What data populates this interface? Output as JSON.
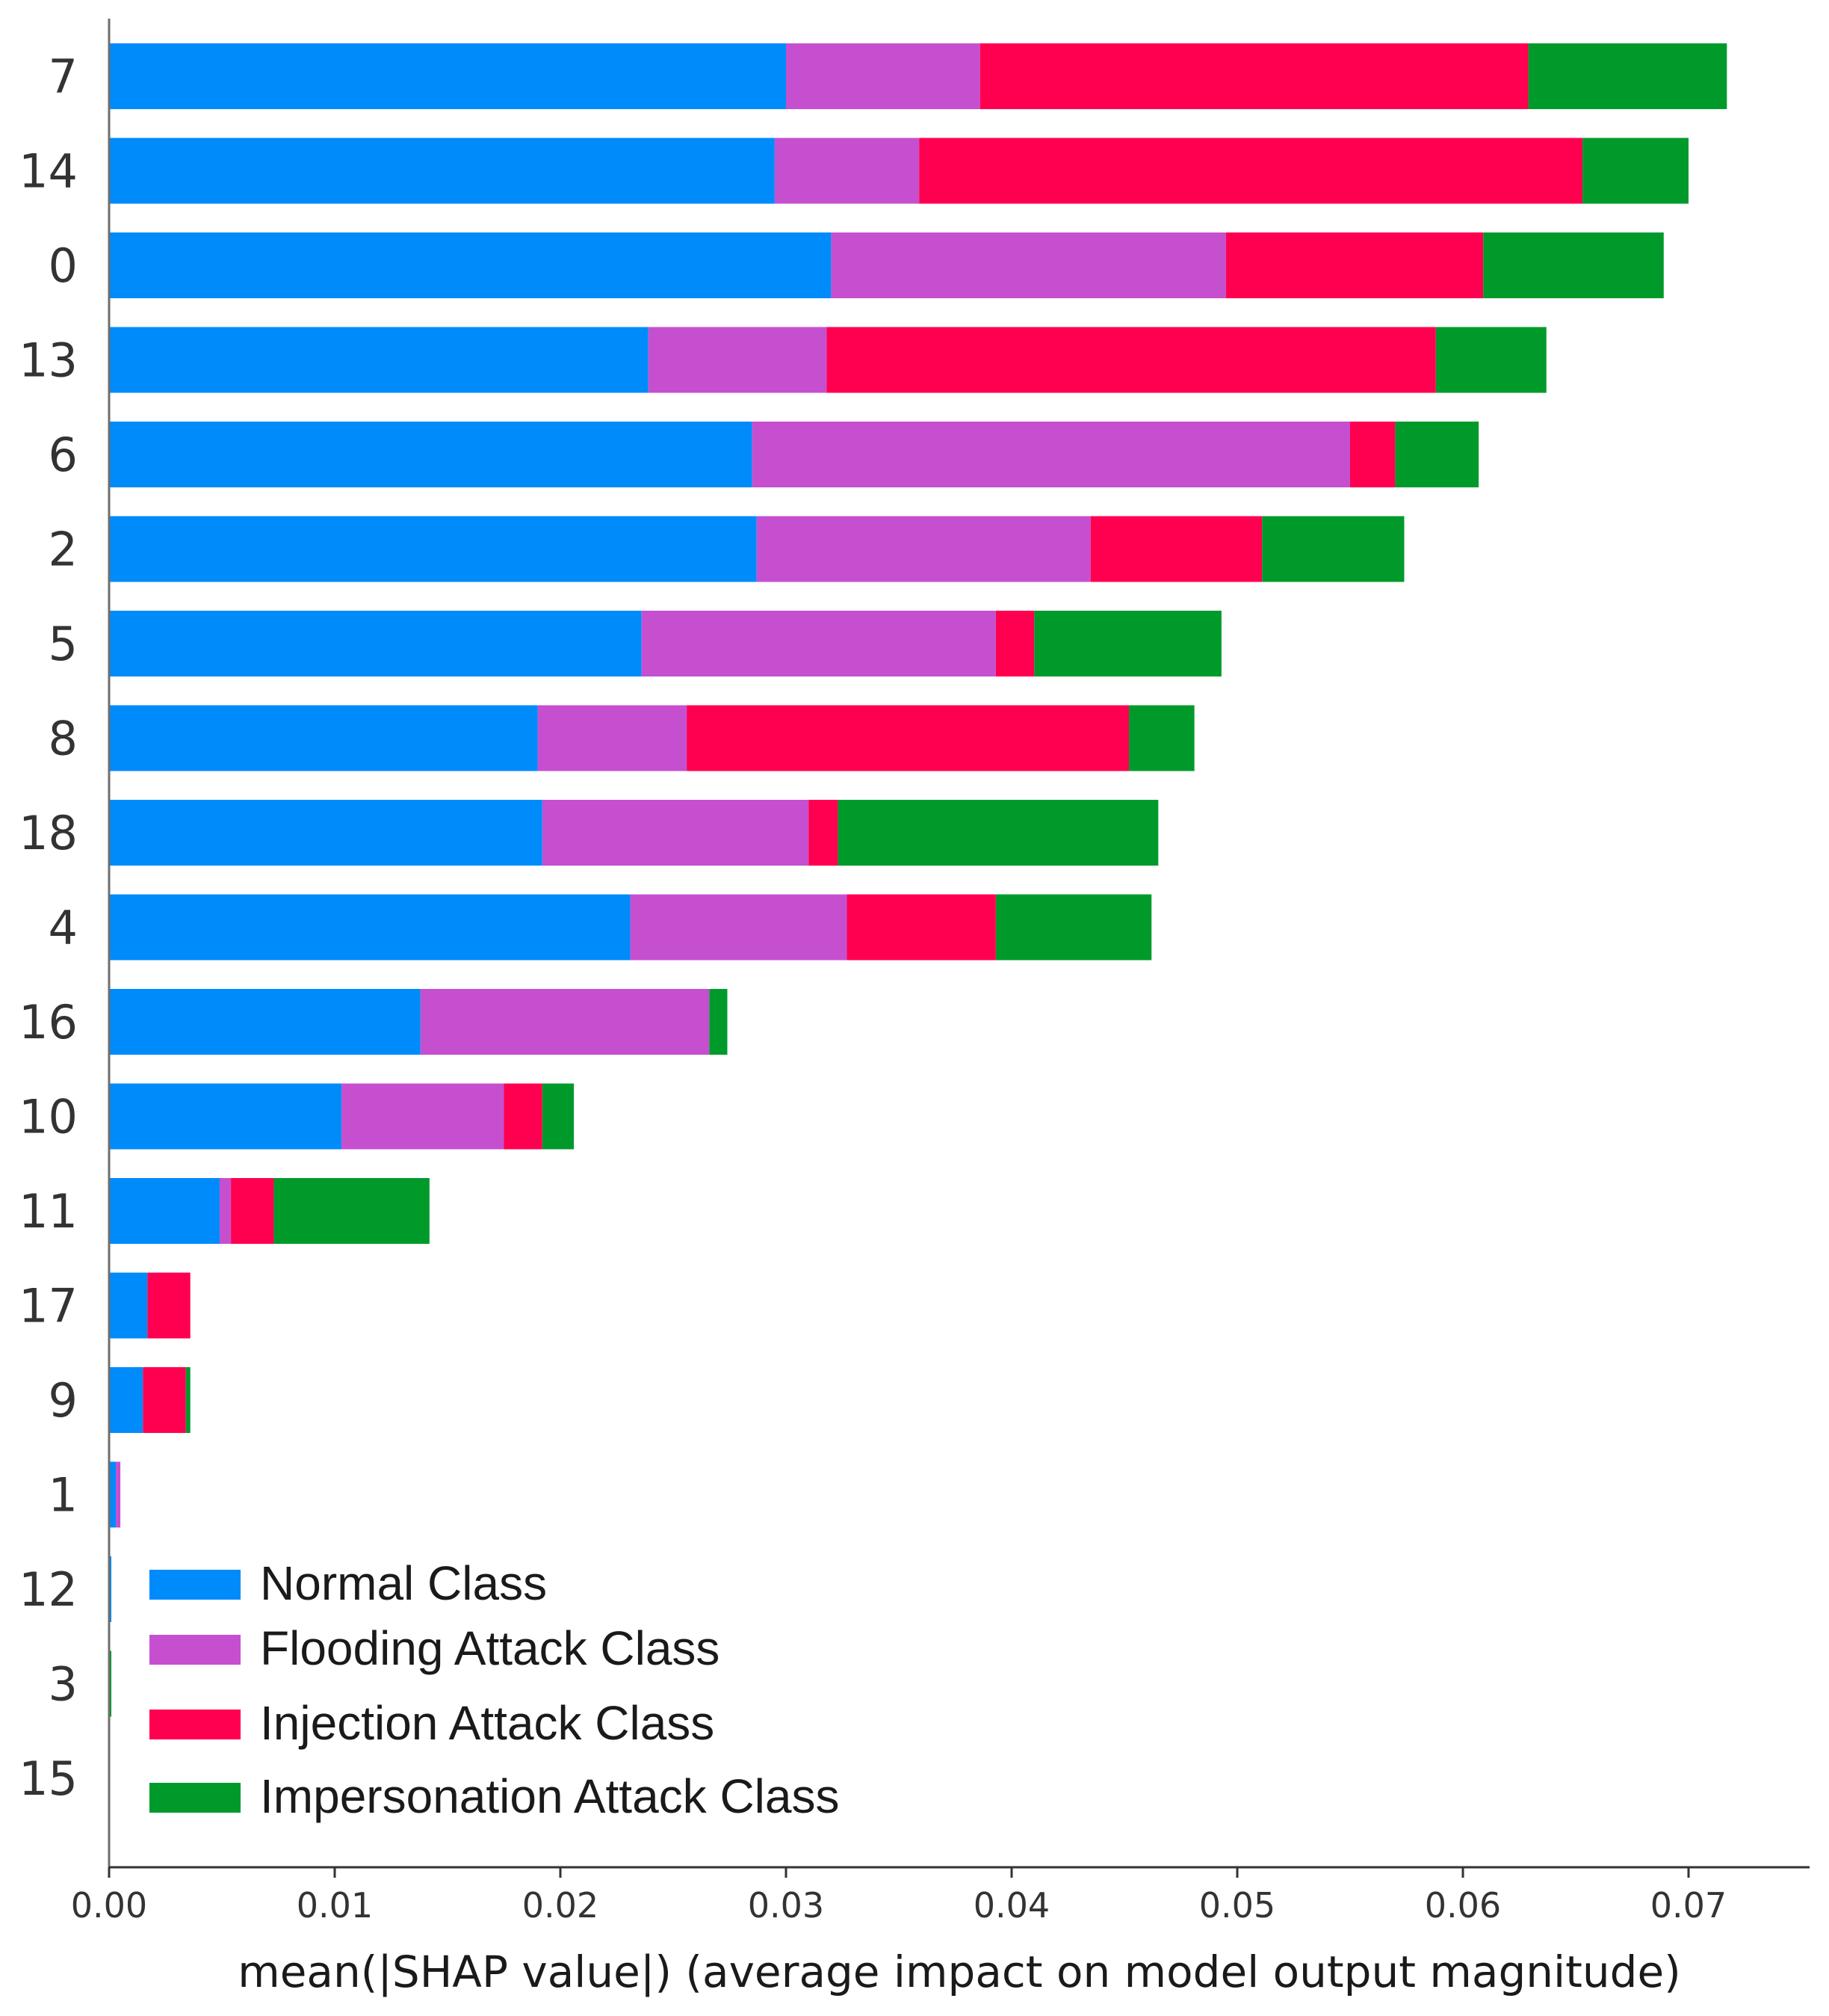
{
  "chart_data": {
    "type": "bar",
    "orientation": "horizontal",
    "stacked": true,
    "categories": [
      "7",
      "14",
      "0",
      "13",
      "6",
      "2",
      "5",
      "8",
      "18",
      "4",
      "16",
      "10",
      "11",
      "17",
      "9",
      "1",
      "12",
      "3",
      "15"
    ],
    "series": [
      {
        "name": "Normal Class",
        "color": "#008bfb",
        "values": [
          0.03,
          0.0295,
          0.032,
          0.0239,
          0.0285,
          0.0287,
          0.0236,
          0.019,
          0.0192,
          0.0231,
          0.0138,
          0.0103,
          0.0049,
          0.0017,
          0.0015,
          0.0003,
          0.0001,
          0.0,
          0.0
        ]
      },
      {
        "name": "Flooding Attack Class",
        "color": "#c64fd0",
        "values": [
          0.0086,
          0.0064,
          0.0175,
          0.0079,
          0.0265,
          0.0148,
          0.0157,
          0.0066,
          0.0118,
          0.0096,
          0.0128,
          0.0072,
          0.0005,
          0.0,
          0.0,
          0.0002,
          0.0,
          0.0,
          0.0
        ]
      },
      {
        "name": "Injection Attack Class",
        "color": "#ff0051",
        "values": [
          0.0243,
          0.0294,
          0.0114,
          0.027,
          0.002,
          0.0076,
          0.0017,
          0.0196,
          0.0013,
          0.0066,
          0.0,
          0.0017,
          0.0019,
          0.0019,
          0.0019,
          0.0,
          0.0,
          0.0,
          0.0
        ]
      },
      {
        "name": "Impersonation Attack Class",
        "color": "#009a2b",
        "values": [
          0.0088,
          0.0047,
          0.008,
          0.0049,
          0.0037,
          0.0063,
          0.0083,
          0.0029,
          0.0142,
          0.0069,
          0.0008,
          0.0014,
          0.0069,
          0.0,
          0.0002,
          0.0,
          0.0,
          0.0001,
          0.0
        ]
      }
    ],
    "xlabel": "mean(|SHAP value|) (average impact on model output magnitude)",
    "ylabel": "",
    "xlim": [
      0,
      0.075
    ],
    "xticks": [
      "0.00",
      "0.01",
      "0.02",
      "0.03",
      "0.04",
      "0.05",
      "0.06",
      "0.07"
    ],
    "xtick_values": [
      0,
      0.01,
      0.02,
      0.03,
      0.04,
      0.05,
      0.06,
      0.07
    ],
    "grid": false,
    "legend_position": "lower-left"
  }
}
